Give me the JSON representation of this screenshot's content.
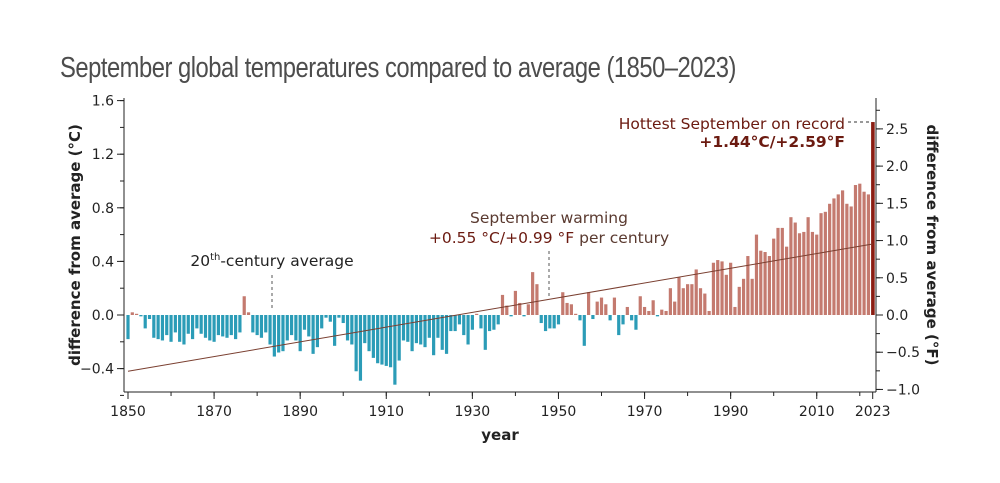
{
  "chart_data": {
    "type": "bar",
    "title": "September global temperatures compared to average (1850–2023)",
    "xlabel": "year",
    "ylabel": "difference from average (°C)",
    "ylabel_right": "difference from average (°F)",
    "ylim": [
      -0.6,
      1.6
    ],
    "ylim_right_F": [
      -1.0,
      2.8
    ],
    "x_range": [
      1850,
      2023
    ],
    "x_ticks": [
      "1850",
      "1870",
      "1890",
      "1910",
      "1930",
      "1950",
      "1970",
      "1990",
      "2010",
      "2023"
    ],
    "x_tick_values": [
      1850,
      1870,
      1890,
      1910,
      1930,
      1950,
      1970,
      1990,
      2010,
      2023
    ],
    "y_ticks": [
      "1.6",
      "1.2",
      "0.8",
      "0.4",
      "0.0",
      "−0.4"
    ],
    "y_tick_values": [
      1.6,
      1.2,
      0.8,
      0.4,
      0.0,
      -0.4
    ],
    "y_ticks_right": [
      "2.5",
      "2.0",
      "1.5",
      "1.0",
      "0.5",
      "0.0",
      "−0.5",
      "−1.0"
    ],
    "y_tick_values_right_F": [
      2.5,
      2.0,
      1.5,
      1.0,
      0.5,
      0.0,
      -0.5,
      -1.0
    ],
    "grid": false,
    "colors": {
      "positive": "#c47a6f",
      "negative": "#2b9cb7",
      "record": "#8a1d12",
      "trend": "#7a3f30",
      "annotation": "#6b1a10"
    },
    "start_year": 1850,
    "values": [
      -0.18,
      0.02,
      0.0,
      -0.01,
      -0.1,
      -0.03,
      -0.17,
      -0.18,
      -0.19,
      -0.15,
      -0.2,
      -0.13,
      -0.2,
      -0.22,
      -0.14,
      -0.18,
      -0.1,
      -0.14,
      -0.17,
      -0.19,
      -0.2,
      -0.15,
      -0.16,
      -0.17,
      -0.15,
      -0.18,
      -0.13,
      0.14,
      0.02,
      -0.13,
      -0.15,
      -0.17,
      -0.13,
      -0.22,
      -0.31,
      -0.28,
      -0.27,
      -0.19,
      -0.15,
      -0.19,
      -0.27,
      -0.11,
      -0.16,
      -0.29,
      -0.24,
      -0.1,
      -0.02,
      -0.05,
      -0.23,
      -0.02,
      -0.06,
      -0.19,
      -0.22,
      -0.42,
      -0.49,
      -0.21,
      -0.27,
      -0.32,
      -0.36,
      -0.37,
      -0.38,
      -0.39,
      -0.52,
      -0.34,
      -0.19,
      -0.2,
      -0.27,
      -0.21,
      -0.22,
      -0.24,
      -0.17,
      -0.3,
      -0.17,
      -0.26,
      -0.29,
      -0.12,
      -0.12,
      -0.07,
      -0.15,
      -0.22,
      -0.11,
      0.0,
      -0.1,
      -0.26,
      -0.12,
      -0.11,
      -0.07,
      0.15,
      0.07,
      -0.01,
      0.18,
      0.09,
      -0.01,
      0.08,
      0.32,
      0.23,
      -0.06,
      -0.12,
      -0.1,
      -0.1,
      -0.07,
      0.17,
      0.09,
      0.08,
      0.0,
      -0.04,
      -0.23,
      0.17,
      -0.03,
      0.1,
      0.13,
      0.08,
      -0.04,
      0.13,
      -0.15,
      -0.07,
      0.06,
      -0.04,
      -0.11,
      0.14,
      0.06,
      0.03,
      0.11,
      -0.01,
      0.04,
      0.03,
      0.2,
      0.1,
      0.28,
      0.2,
      0.23,
      0.23,
      0.34,
      0.2,
      0.16,
      0.03,
      0.39,
      0.41,
      0.4,
      0.3,
      0.39,
      0.06,
      0.21,
      0.27,
      0.44,
      0.27,
      0.6,
      0.48,
      0.47,
      0.44,
      0.57,
      0.65,
      0.65,
      0.51,
      0.73,
      0.69,
      0.61,
      0.62,
      0.73,
      0.62,
      0.6,
      0.76,
      0.77,
      0.83,
      0.87,
      0.9,
      0.93,
      0.83,
      0.81,
      0.97,
      0.98,
      0.92,
      0.9,
      1.44
    ],
    "trend": {
      "rate_per_century_C": 0.55,
      "start_value": -0.42,
      "end_value": 0.53
    },
    "annotations": {
      "record": {
        "line1": "Hottest September on record",
        "line2": "+1.44°C/+2.59°F",
        "year": 2023,
        "value": 1.44
      },
      "warming": {
        "line1": "September warming",
        "value_text": "+0.55 °C/+0.99 °F",
        "suffix": " per century",
        "year": 1948
      },
      "average": {
        "base": "20",
        "sup": "th",
        "rest": "-century average",
        "year": 1884
      }
    }
  }
}
